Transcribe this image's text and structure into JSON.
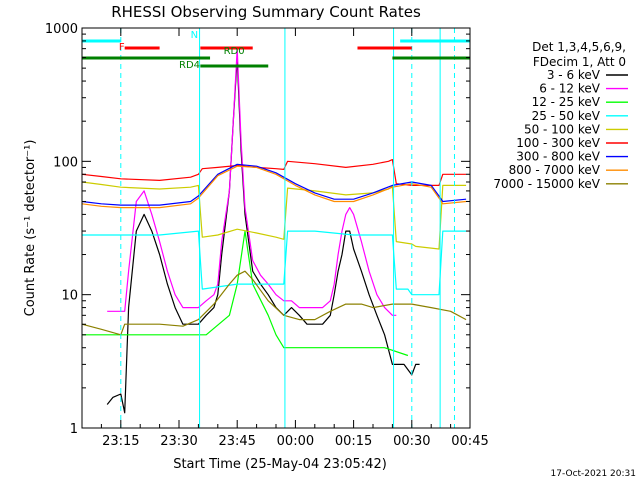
{
  "chart_data": {
    "type": "line",
    "title": "RHESSI Observing Summary Count Rates",
    "xlabel": "Start Time (25-May-04 23:05:42)",
    "ylabel": "Count Rate (s⁻¹ detector⁻¹)",
    "x_unit": "minutes",
    "xlim": [
      0,
      100
    ],
    "ylim": [
      1,
      1000
    ],
    "yscale": "log",
    "x_ticks": [
      {
        "x": 10,
        "label": "23:15"
      },
      {
        "x": 25,
        "label": "23:30"
      },
      {
        "x": 40,
        "label": "23:45"
      },
      {
        "x": 55,
        "label": "00:00"
      },
      {
        "x": 70,
        "label": "00:15"
      },
      {
        "x": 85,
        "label": "00:30"
      },
      {
        "x": 100,
        "label": "00:45"
      }
    ],
    "y_ticks": [
      {
        "y": 1,
        "label": "1"
      },
      {
        "y": 10,
        "label": "10"
      },
      {
        "y": 100,
        "label": "100"
      },
      {
        "y": 1000,
        "label": "1000"
      }
    ],
    "legend_header": [
      "Det 1,3,4,5,6,9,",
      "FDecim 1, Att 0"
    ],
    "legend_position": "right",
    "date_stamp": "17-Oct-2021 20:31",
    "series": [
      {
        "name": "3 - 6 keV",
        "color": "#000000",
        "x": [
          6.5,
          8,
          10,
          11,
          12,
          14,
          16,
          18,
          20,
          22,
          24,
          26,
          28,
          30,
          32,
          34,
          35,
          36,
          38,
          39,
          40,
          41,
          42,
          44,
          46,
          48,
          50,
          52,
          54,
          56,
          58,
          60,
          62,
          64,
          65,
          66,
          67,
          68,
          69,
          70,
          72,
          74,
          76,
          78,
          80,
          81,
          83,
          85,
          86,
          87
        ],
        "y": [
          1.5,
          1.7,
          1.8,
          1.3,
          8,
          30,
          40,
          30,
          20,
          12,
          8,
          6,
          6,
          6,
          7,
          8,
          10,
          20,
          60,
          200,
          600,
          120,
          40,
          15,
          12,
          10,
          8,
          7,
          8,
          7,
          6,
          6,
          6,
          7,
          10,
          15,
          20,
          30,
          30,
          22,
          15,
          10,
          7,
          5,
          3,
          3,
          3,
          2.5,
          3,
          3
        ]
      },
      {
        "name": "6 - 12 keV",
        "color": "#ff00ff",
        "x": [
          6.5,
          8,
          10,
          11,
          12,
          14,
          16,
          18,
          20,
          22,
          24,
          26,
          28,
          30,
          32,
          34,
          35,
          36,
          38,
          39,
          40,
          41,
          42,
          44,
          46,
          48,
          50,
          52,
          54,
          56,
          58,
          60,
          62,
          64,
          65,
          66,
          67,
          68,
          69,
          70,
          72,
          74,
          76,
          78,
          80,
          81
        ],
        "y": [
          7.5,
          7.5,
          7.5,
          7.5,
          15,
          50,
          60,
          40,
          25,
          15,
          10,
          8,
          8,
          8,
          9,
          10,
          12,
          25,
          60,
          200,
          700,
          140,
          45,
          18,
          14,
          12,
          10,
          9,
          9,
          8,
          8,
          8,
          8,
          9,
          12,
          20,
          30,
          40,
          45,
          40,
          25,
          15,
          10,
          8,
          7,
          7
        ]
      },
      {
        "name": "12 - 25 keV",
        "color": "#00ff00",
        "x": [
          0,
          5,
          10,
          11,
          20,
          28,
          32,
          38,
          40,
          42,
          44,
          48,
          50,
          52,
          56,
          60,
          66,
          70,
          74,
          78,
          84
        ],
        "y": [
          5,
          5,
          5,
          5,
          5,
          5,
          5,
          7,
          12,
          30,
          12,
          7,
          5,
          4,
          4,
          4,
          4,
          4,
          4,
          4,
          3.5
        ]
      },
      {
        "name": "25 - 50 keV",
        "color": "#00ffff",
        "x": [
          0,
          10,
          11,
          20,
          30,
          31,
          40,
          50,
          52,
          53,
          60,
          70,
          80,
          81,
          84,
          85,
          86,
          92,
          93,
          99
        ],
        "y": [
          28,
          28,
          28,
          28,
          30,
          11,
          12,
          12,
          12,
          30,
          30,
          28,
          28,
          11,
          11,
          10,
          10,
          10,
          30,
          30
        ]
      },
      {
        "name": "50 - 100 keV",
        "color": "#cccc00",
        "x": [
          0,
          5,
          10,
          20,
          28,
          30,
          31,
          35,
          40,
          45,
          50,
          52,
          53,
          60,
          68,
          75,
          79,
          80,
          81,
          85,
          86,
          92,
          93,
          99
        ],
        "y": [
          70,
          67,
          64,
          62,
          64,
          66,
          27,
          28,
          31,
          29,
          27,
          26,
          63,
          60,
          56,
          58,
          62,
          65,
          25,
          24,
          23,
          22,
          66,
          66
        ]
      },
      {
        "name": "100 - 300 keV",
        "color": "#ff0000",
        "x": [
          0,
          5,
          10,
          20,
          28,
          30,
          31,
          35,
          40,
          45,
          50,
          52,
          53,
          60,
          68,
          75,
          79,
          80,
          81,
          85,
          86,
          92,
          93,
          99
        ],
        "y": [
          80,
          77,
          74,
          72,
          76,
          80,
          88,
          90,
          93,
          90,
          88,
          87,
          100,
          96,
          90,
          95,
          100,
          103,
          68,
          66,
          66,
          66,
          80,
          80
        ]
      },
      {
        "name": "300 - 800 keV",
        "color": "#0000ff",
        "x": [
          0,
          5,
          10,
          20,
          28,
          30,
          35,
          40,
          45,
          50,
          55,
          60,
          65,
          70,
          75,
          80,
          85,
          90,
          92,
          93,
          99
        ],
        "y": [
          50,
          48,
          47,
          47,
          50,
          55,
          80,
          95,
          92,
          82,
          68,
          58,
          52,
          52,
          58,
          66,
          70,
          66,
          55,
          50,
          52
        ]
      },
      {
        "name": "800 - 7000 keV",
        "color": "#ff8c00",
        "x": [
          0,
          5,
          10,
          20,
          28,
          30,
          35,
          40,
          45,
          50,
          55,
          60,
          65,
          70,
          75,
          80,
          85,
          90,
          92,
          93,
          99
        ],
        "y": [
          48,
          46,
          45,
          45,
          48,
          53,
          78,
          92,
          90,
          80,
          66,
          56,
          50,
          50,
          56,
          64,
          68,
          64,
          53,
          48,
          50
        ]
      },
      {
        "name": "7000 - 15000 keV",
        "color": "#8b8000",
        "x": [
          0,
          5,
          10,
          11,
          20,
          26,
          30,
          34,
          38,
          40,
          42,
          44,
          48,
          52,
          56,
          60,
          64,
          68,
          72,
          75,
          80,
          85,
          90,
          95,
          99
        ],
        "y": [
          6,
          5.5,
          5,
          6,
          6,
          5.8,
          6.5,
          8.5,
          12,
          14,
          15,
          13,
          9,
          7,
          6.5,
          6.5,
          7.5,
          8.5,
          8.5,
          8,
          8.5,
          8.5,
          8,
          7.5,
          6.5
        ]
      }
    ],
    "vertical_lines": [
      {
        "x": 10,
        "color": "#00ffff",
        "style": "dashed"
      },
      {
        "x": 30.3,
        "color": "#00ffff",
        "style": "solid"
      },
      {
        "x": 52.3,
        "color": "#00ffff",
        "style": "solid"
      },
      {
        "x": 80.3,
        "color": "#00ffff",
        "style": "solid"
      },
      {
        "x": 85,
        "color": "#00ffff",
        "style": "dashed"
      },
      {
        "x": 92.3,
        "color": "#00ffff",
        "style": "solid"
      },
      {
        "x": 96,
        "color": "#00ffff",
        "style": "dashed"
      }
    ],
    "flag_bars": [
      {
        "label": "N",
        "color": "#00ffff",
        "label_color": "#00ffff",
        "segments": [
          [
            0,
            10
          ],
          [
            82,
            100
          ]
        ]
      },
      {
        "label": "F",
        "color": "#ff0000",
        "label_color": "#ff0000",
        "segments": [
          [
            11,
            20
          ],
          [
            30.5,
            44
          ],
          [
            71,
            85
          ]
        ]
      },
      {
        "label": "RD0",
        "color": "#008000",
        "label_color": "#008000",
        "segments": [
          [
            0,
            33
          ],
          [
            80,
            96
          ],
          [
            96,
            100
          ]
        ]
      },
      {
        "label": "RD4",
        "color": "#008000",
        "label_color": "#008000",
        "segments": [
          [
            30.5,
            48
          ]
        ]
      }
    ]
  }
}
